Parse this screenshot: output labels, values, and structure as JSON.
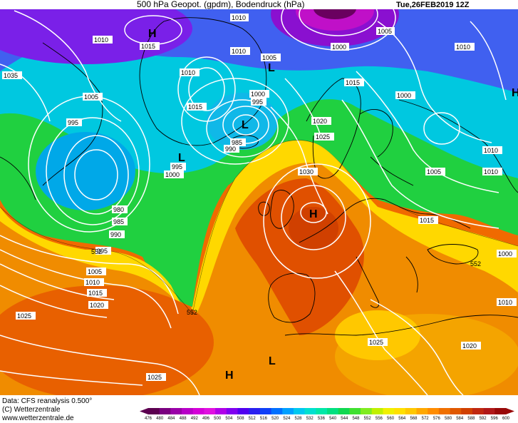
{
  "header": {
    "title": "500 hPa Geopot. (gpdm), Bodendruck (hPa)",
    "date": "Tue,26FEB2019 12Z"
  },
  "footer": {
    "data_source": "Data: CFS reanalysis 0.500°",
    "copyright": "(C) Wetterzentrale",
    "url": "www.wetterzentrale.de"
  },
  "legend": {
    "ticks": [
      "476",
      "480",
      "484",
      "488",
      "492",
      "496",
      "500",
      "504",
      "508",
      "512",
      "516",
      "520",
      "524",
      "528",
      "532",
      "536",
      "540",
      "544",
      "548",
      "552",
      "556",
      "560",
      "564",
      "568",
      "572",
      "576",
      "580",
      "584",
      "588",
      "592",
      "596",
      "600"
    ],
    "colors": [
      "#5c0050",
      "#7a0080",
      "#9a00a8",
      "#b800c8",
      "#d400d8",
      "#e010e0",
      "#b000e8",
      "#8000f0",
      "#5000f0",
      "#2a20f0",
      "#1040f8",
      "#0070ff",
      "#00a0ff",
      "#00c8f0",
      "#00e0d0",
      "#00e8a8",
      "#00e080",
      "#10d850",
      "#40e030",
      "#80ec20",
      "#c0f000",
      "#f0f000",
      "#ffe000",
      "#ffc800",
      "#ffa800",
      "#ff8c00",
      "#f07000",
      "#e05800",
      "#d04000",
      "#c02810",
      "#b01818",
      "#980808"
    ]
  },
  "pressure_labels": [
    "1010",
    "1005",
    "1000",
    "1035",
    "1010",
    "1015",
    "1010",
    "1005",
    "1000",
    "1010",
    "995",
    "1010",
    "1005",
    "1015",
    "1015",
    "1000",
    "995",
    "985",
    "990",
    "1020",
    "1025",
    "995",
    "1000",
    "1030",
    "980",
    "985",
    "990",
    "995",
    "1005",
    "1010",
    "1015",
    "1020",
    "1025",
    "1010",
    "1005",
    "1010",
    "1015",
    "1025",
    "1020",
    "1025",
    "1010",
    "1000"
  ],
  "geopotential_labels": [
    "552",
    "552",
    "552"
  ],
  "pressure_systems": [
    "H",
    "L",
    "L",
    "L",
    "H",
    "H",
    "L",
    "H"
  ],
  "colors": {
    "isobar": "#ffffff",
    "coastline": "#000000",
    "background": "#ffffff"
  }
}
